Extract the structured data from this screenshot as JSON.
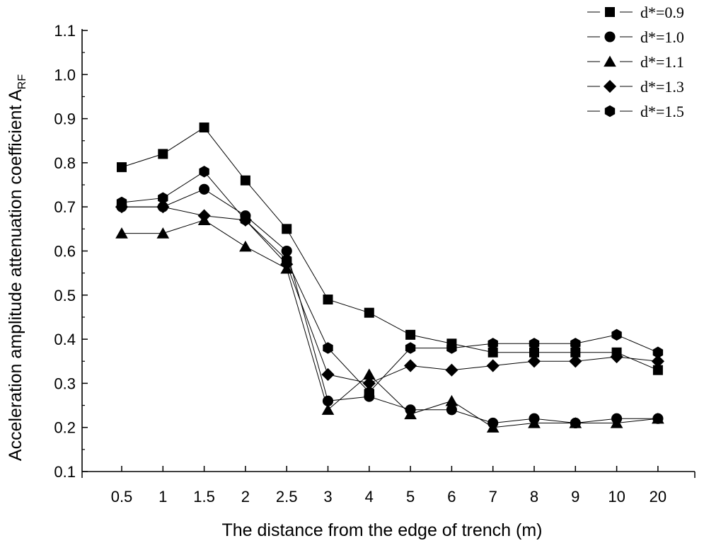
{
  "chart_data": {
    "type": "line",
    "title": "",
    "xlabel": "The distance from the edge of trench (m)",
    "ylabel": "Acceleration amplitude attenuation coefficient A",
    "ylabel_sub": "RF",
    "categories": [
      "0.5",
      "1",
      "1.5",
      "2",
      "2.5",
      "3",
      "4",
      "5",
      "6",
      "7",
      "8",
      "9",
      "10",
      "20"
    ],
    "ylim": [
      0.1,
      1.1
    ],
    "yticks": [
      "0.1",
      "0.2",
      "0.3",
      "0.4",
      "0.5",
      "0.6",
      "0.7",
      "0.8",
      "0.9",
      "1.0",
      "1.1"
    ],
    "grid": false,
    "legend_position": "top-right",
    "series": [
      {
        "name": "d*=0.9",
        "marker": "square",
        "values": [
          0.79,
          0.82,
          0.88,
          0.76,
          0.65,
          0.49,
          0.46,
          0.41,
          0.39,
          0.37,
          0.37,
          0.37,
          0.37,
          0.33
        ]
      },
      {
        "name": "d*=1.0",
        "marker": "circle",
        "values": [
          0.7,
          0.7,
          0.74,
          0.68,
          0.6,
          0.26,
          0.27,
          0.24,
          0.24,
          0.21,
          0.22,
          0.21,
          0.22,
          0.22
        ]
      },
      {
        "name": "d*=1.1",
        "marker": "triangle",
        "values": [
          0.64,
          0.64,
          0.67,
          0.61,
          0.56,
          0.24,
          0.32,
          0.23,
          0.26,
          0.2,
          0.21,
          0.21,
          0.21,
          0.22
        ]
      },
      {
        "name": "d*=1.3",
        "marker": "diamond",
        "values": [
          0.7,
          0.7,
          0.68,
          0.67,
          0.57,
          0.32,
          0.3,
          0.34,
          0.33,
          0.34,
          0.35,
          0.35,
          0.36,
          0.35
        ]
      },
      {
        "name": "d*=1.5",
        "marker": "hexagon",
        "values": [
          0.71,
          0.72,
          0.78,
          0.67,
          0.58,
          0.38,
          0.28,
          0.38,
          0.38,
          0.39,
          0.39,
          0.39,
          0.41,
          0.37
        ]
      }
    ]
  }
}
